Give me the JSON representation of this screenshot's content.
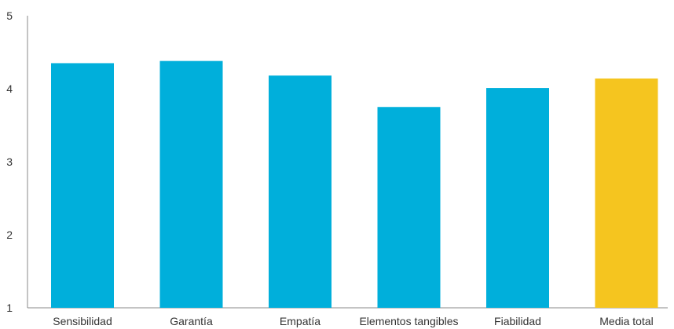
{
  "chart_data": {
    "type": "bar",
    "categories": [
      "Sensibilidad",
      "Garantía",
      "Empatía",
      "Elementos tangibles",
      "Fiabilidad",
      "Media total"
    ],
    "values": [
      4.35,
      4.38,
      4.18,
      3.75,
      4.01,
      4.14
    ],
    "bar_colors": [
      "#00afdb",
      "#00afdb",
      "#00afdb",
      "#00afdb",
      "#00afdb",
      "#f5c51f"
    ],
    "yticks": [
      1,
      2,
      3,
      4,
      5
    ],
    "ylim": [
      1,
      5
    ],
    "title": "",
    "xlabel": "",
    "ylabel": "",
    "grid": false,
    "legend": "none"
  }
}
